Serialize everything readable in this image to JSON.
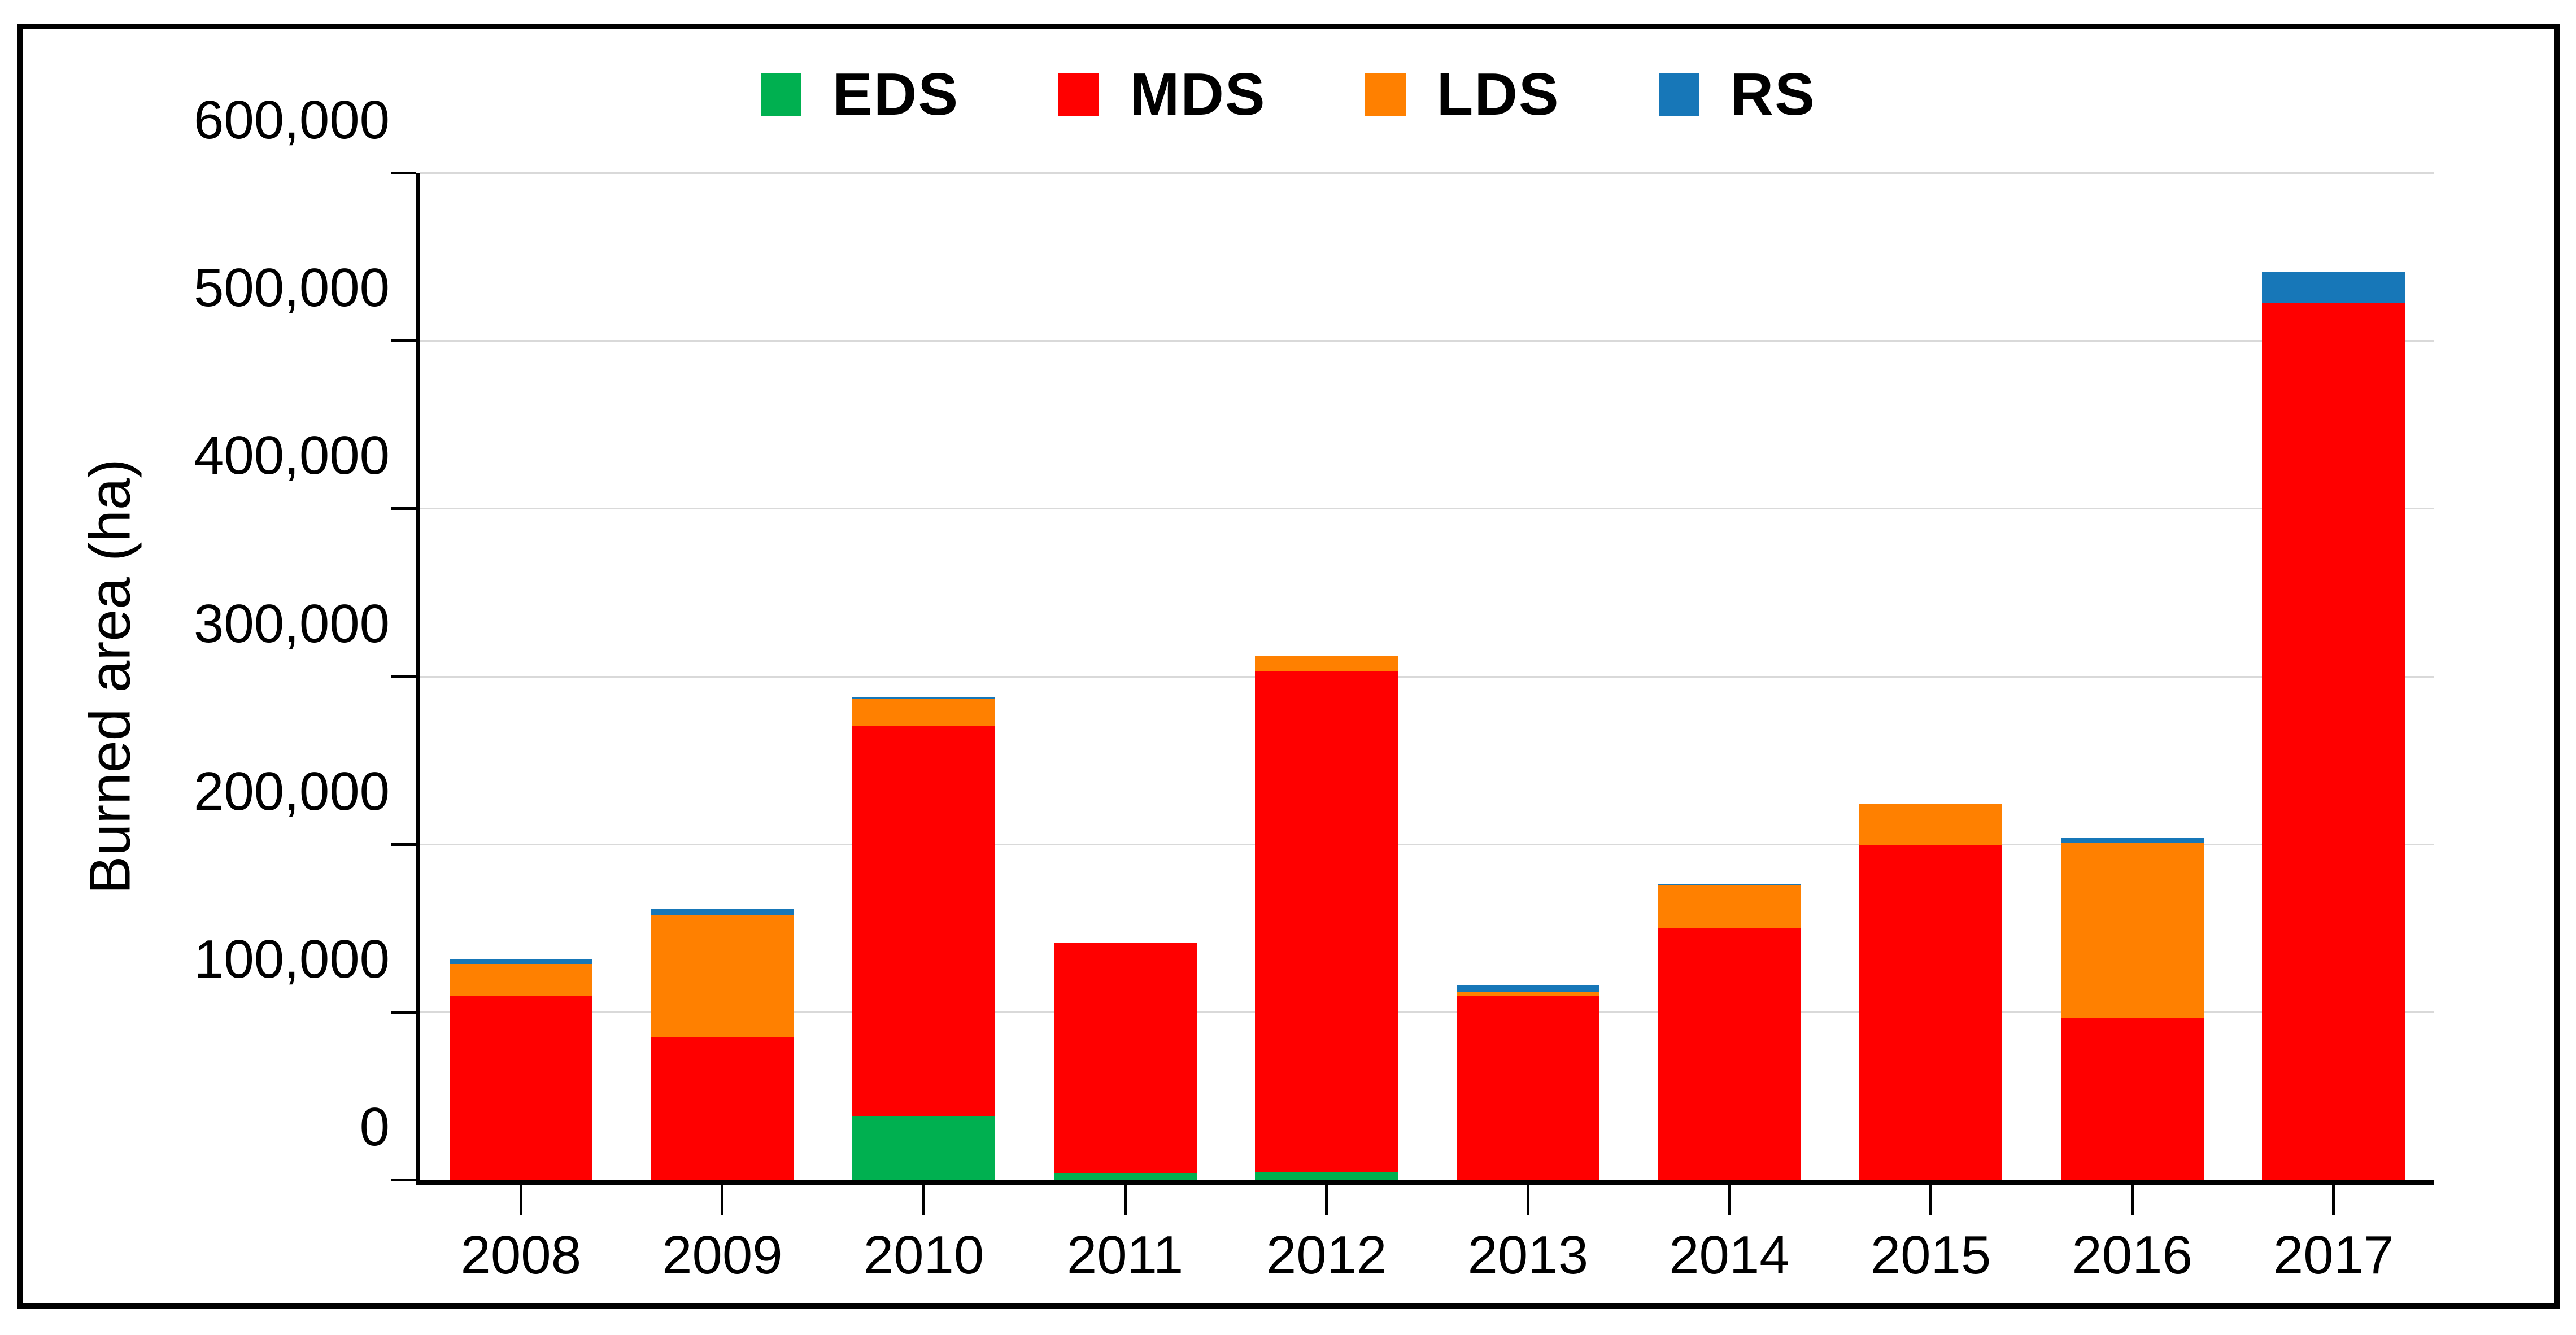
{
  "figure": {
    "background": "#ffffff",
    "border_color": "#000000",
    "gridline_color": "#d9d9d9"
  },
  "chart_data": {
    "type": "bar",
    "stacked": true,
    "title": "",
    "xlabel": "",
    "ylabel": "Burned area (ha)",
    "ylim": [
      0,
      600000
    ],
    "grid": true,
    "legend_position": "top-center",
    "yticks": [
      {
        "value": 0,
        "label": "0"
      },
      {
        "value": 100000,
        "label": "100,000"
      },
      {
        "value": 200000,
        "label": "200,000"
      },
      {
        "value": 300000,
        "label": "300,000"
      },
      {
        "value": 400000,
        "label": "400,000"
      },
      {
        "value": 500000,
        "label": "500,000"
      },
      {
        "value": 600000,
        "label": "600,000"
      }
    ],
    "categories": [
      "2008",
      "2009",
      "2010",
      "2011",
      "2012",
      "2013",
      "2014",
      "2015",
      "2016",
      "2017"
    ],
    "series": [
      {
        "name": "EDS",
        "color": "#00b050",
        "values": [
          0,
          0,
          38500,
          4500,
          5000,
          0,
          0,
          0,
          0,
          0
        ]
      },
      {
        "name": "MDS",
        "color": "#ff0000",
        "values": [
          110000,
          85000,
          232000,
          137000,
          298500,
          110000,
          150000,
          200000,
          96500,
          523000
        ]
      },
      {
        "name": "LDS",
        "color": "#ff8000",
        "values": [
          19000,
          73000,
          16500,
          0,
          9000,
          2000,
          26000,
          24000,
          104500,
          0
        ]
      },
      {
        "name": "RS",
        "color": "#1777b8",
        "values": [
          2500,
          4000,
          1000,
          0,
          0,
          4500,
          500,
          500,
          3000,
          18000
        ]
      }
    ],
    "totals": [
      131500,
      162000,
      288000,
      141500,
      312500,
      116500,
      176500,
      224500,
      204000,
      541000
    ]
  }
}
